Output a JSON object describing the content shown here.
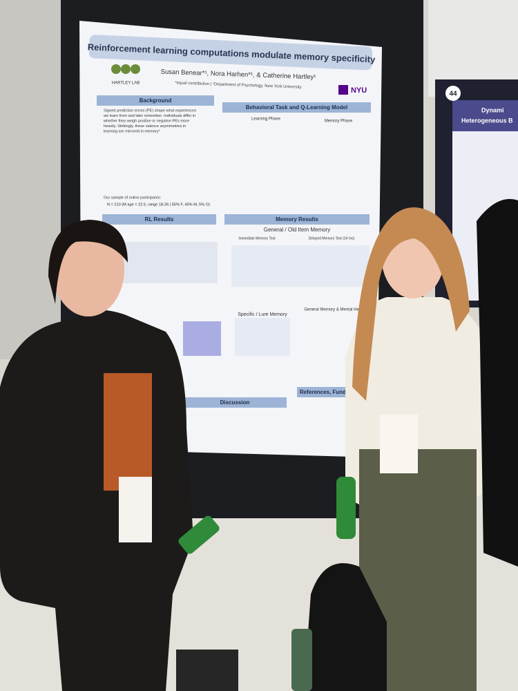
{
  "poster": {
    "title": "Reinforcement learning computations modulate memory specificity",
    "lab": "HARTLEY LAB",
    "authors": "Susan Benear*¹, Nora Harhen*¹, & Catherine Hartley¹",
    "affiliation": "*equal contribution | ¹Department of Psychology, New York University",
    "logo": "NYU",
    "sections": [
      "Background",
      "Behavioral Task and Q-Learning Model",
      "RL Results",
      "Memory Results",
      "Discussion",
      "References, Funding, & Co"
    ],
    "subheads": [
      "Learning Phase",
      "Memory Phase",
      "General / Old Item Memory",
      "Immediate Memory Test",
      "Delayed Memory Test (24 hrs)",
      "Specific / Lure Memory",
      "General Memory & Mental Health"
    ],
    "background": [
      "Signed prediction errors (PE) shape what experiences",
      "we learn from and later remember. Individuals differ in",
      "whether they weigh positive or negative PEs more",
      "heavily. Strikingly, these valence asymmetries in",
      "learning are mirrored in memory¹"
    ],
    "sample": "Our sample of online participants:",
    "n": "N = 210 (M age = 22.5, range 18-26 | 55% F, 45% M, 5% O)"
  },
  "neighbor": {
    "number": "44",
    "title": "Dynami",
    "subtitle": "Heterogeneous B"
  }
}
